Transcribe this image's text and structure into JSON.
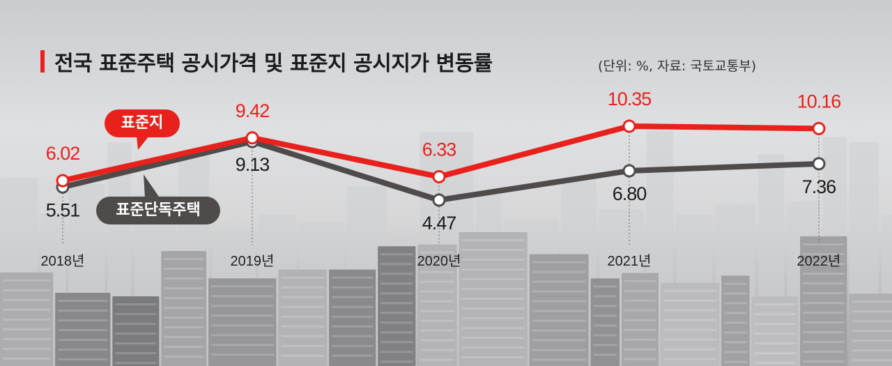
{
  "title": "전국 표준주택 공시가격 및 표준지 공시지가 변동률",
  "unit_note": "(단위: %, 자료: 국토교통부)",
  "colors": {
    "land": "#e8211c",
    "housing": "#4e4b4a",
    "title_accent": "#e8211c"
  },
  "chart_data": {
    "type": "line",
    "title": "전국 표준주택 공시가격 및 표준지 공시지가 변동률",
    "categories": [
      "2018년",
      "2019년",
      "2020년",
      "2021년",
      "2022년"
    ],
    "series": [
      {
        "name": "표준지",
        "values": [
          6.02,
          9.42,
          6.33,
          10.35,
          10.16
        ]
      },
      {
        "name": "표준단독주택",
        "values": [
          5.51,
          9.13,
          4.47,
          6.8,
          7.36
        ]
      }
    ],
    "value_labels": {
      "표준지": [
        "6.02",
        "9.42",
        "6.33",
        "10.35",
        "10.16"
      ],
      "표준단독주택": [
        "5.51",
        "9.13",
        "4.47",
        "6.80",
        "7.36"
      ]
    },
    "legend": [
      "표준지",
      "표준단독주택"
    ],
    "grid": false
  }
}
